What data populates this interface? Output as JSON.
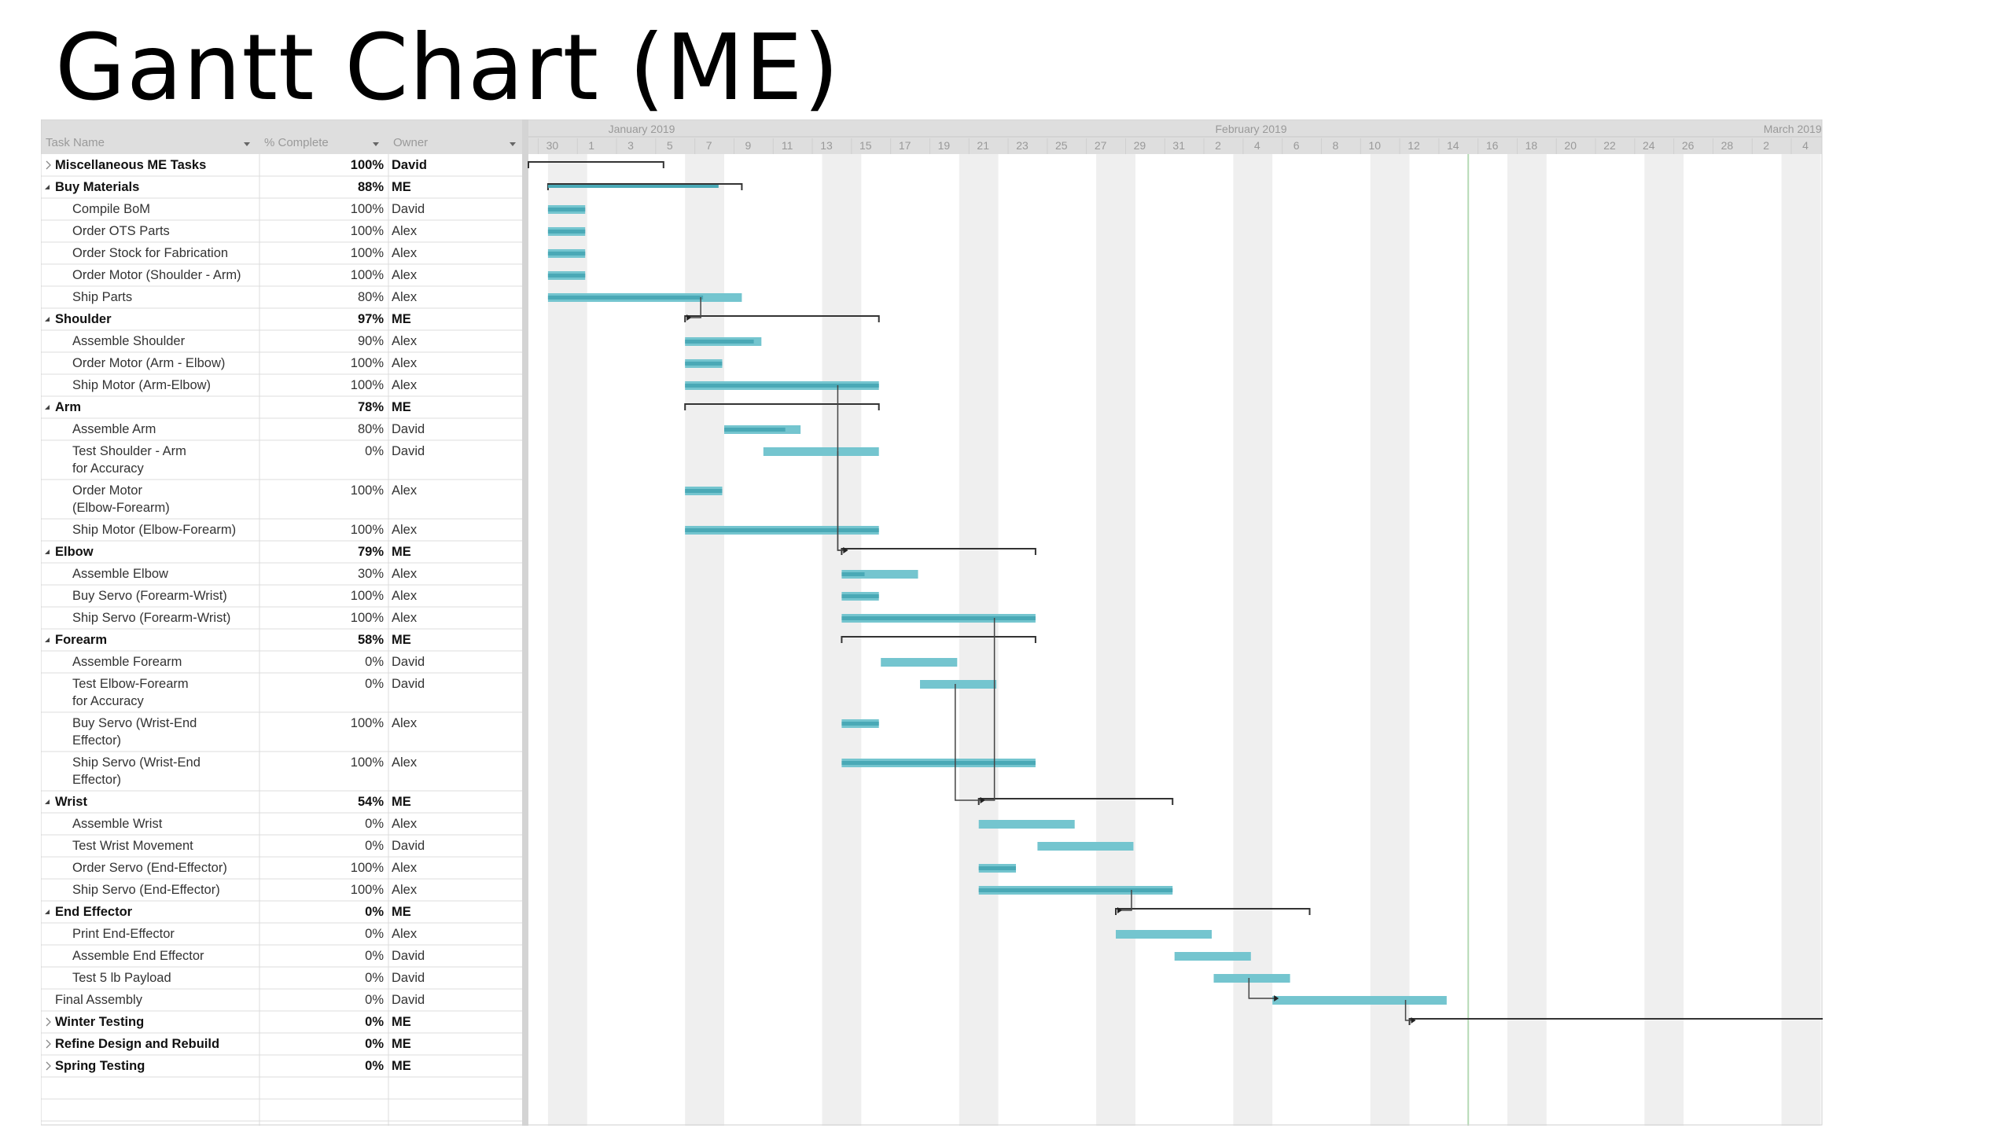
{
  "slide": {
    "title": "Gantt Chart (ME)"
  },
  "columns": {
    "task": "Task Name",
    "pct": "% Complete",
    "owner": "Owner"
  },
  "colors": {
    "bar": "#74c5cf",
    "bar_done": "#4aa9b6",
    "summary": "#333333",
    "weekend": "#efefef",
    "today": "#b6dab6",
    "grid": "#dcdcdc"
  },
  "chart_data": {
    "type": "gantt",
    "title": "Gantt Chart (ME)",
    "timeline": {
      "months": [
        {
          "label": "January 2019",
          "date": "2019-01-01"
        },
        {
          "label": "February 2019",
          "date": "2019-02-01"
        },
        {
          "label": "March 2019",
          "date": "2019-03-01"
        }
      ],
      "start": "2018-12-28",
      "end": "2019-03-05",
      "tick_labels": [
        "30",
        "1",
        "3",
        "5",
        "7",
        "9",
        "11",
        "13",
        "15",
        "17",
        "19",
        "21",
        "23",
        "25",
        "27",
        "29",
        "31",
        "2",
        "4",
        "6",
        "8",
        "10",
        "12",
        "14",
        "16",
        "18",
        "20",
        "22",
        "24",
        "26",
        "28",
        "2",
        "4"
      ],
      "today": "2019-02-14"
    },
    "tasks": [
      {
        "name": "Miscellaneous ME Tasks",
        "pct": "100%",
        "owner": "David",
        "summary": true,
        "collapsed": true,
        "start": "2018-12-28",
        "end": "2019-01-03"
      },
      {
        "name": "Buy Materials",
        "pct": "88%",
        "owner": "ME",
        "summary": true,
        "start": "2018-12-29",
        "end": "2019-01-07"
      },
      {
        "name": "Compile BoM",
        "pct": "100%",
        "owner": "David",
        "start": "2018-12-29",
        "end": "2018-12-30"
      },
      {
        "name": "Order OTS Parts",
        "pct": "100%",
        "owner": "Alex",
        "start": "2018-12-29",
        "end": "2018-12-30"
      },
      {
        "name": "Order Stock for Fabrication",
        "pct": "100%",
        "owner": "Alex",
        "start": "2018-12-29",
        "end": "2018-12-30"
      },
      {
        "name": "Order Motor (Shoulder - Arm)",
        "pct": "100%",
        "owner": "Alex",
        "start": "2018-12-29",
        "end": "2018-12-30"
      },
      {
        "name": "Ship Parts",
        "pct": "80%",
        "owner": "Alex",
        "start": "2018-12-29",
        "end": "2019-01-07"
      },
      {
        "name": "Shoulder",
        "pct": "97%",
        "owner": "ME",
        "summary": true,
        "start": "2019-01-05",
        "end": "2019-01-14"
      },
      {
        "name": "Assemble Shoulder",
        "pct": "90%",
        "owner": "Alex",
        "start": "2019-01-05",
        "end": "2019-01-08"
      },
      {
        "name": "Order Motor (Arm - Elbow)",
        "pct": "100%",
        "owner": "Alex",
        "start": "2019-01-05",
        "end": "2019-01-06"
      },
      {
        "name": "Ship Motor (Arm-Elbow)",
        "pct": "100%",
        "owner": "Alex",
        "start": "2019-01-05",
        "end": "2019-01-14"
      },
      {
        "name": "Arm",
        "pct": "78%",
        "owner": "ME",
        "summary": true,
        "start": "2019-01-05",
        "end": "2019-01-14"
      },
      {
        "name": "Assemble Arm",
        "pct": "80%",
        "owner": "David",
        "start": "2019-01-07",
        "end": "2019-01-10"
      },
      {
        "name": "Test Shoulder - Arm for Accuracy",
        "pct": "0%",
        "owner": "David",
        "start": "2019-01-09",
        "end": "2019-01-14"
      },
      {
        "name": "Order Motor (Elbow-Forearm)",
        "pct": "100%",
        "owner": "Alex",
        "start": "2019-01-05",
        "end": "2019-01-06"
      },
      {
        "name": "Ship Motor (Elbow-Forearm)",
        "pct": "100%",
        "owner": "Alex",
        "start": "2019-01-05",
        "end": "2019-01-14"
      },
      {
        "name": "Elbow",
        "pct": "79%",
        "owner": "ME",
        "summary": true,
        "start": "2019-01-13",
        "end": "2019-01-22"
      },
      {
        "name": "Assemble Elbow",
        "pct": "30%",
        "owner": "Alex",
        "start": "2019-01-13",
        "end": "2019-01-16"
      },
      {
        "name": "Buy Servo (Forearm-Wrist)",
        "pct": "100%",
        "owner": "Alex",
        "start": "2019-01-13",
        "end": "2019-01-14"
      },
      {
        "name": "Ship Servo (Forearm-Wrist)",
        "pct": "100%",
        "owner": "Alex",
        "start": "2019-01-13",
        "end": "2019-01-22"
      },
      {
        "name": "Forearm",
        "pct": "58%",
        "owner": "ME",
        "summary": true,
        "start": "2019-01-13",
        "end": "2019-01-22"
      },
      {
        "name": "Assemble Forearm",
        "pct": "0%",
        "owner": "David",
        "start": "2019-01-15",
        "end": "2019-01-18"
      },
      {
        "name": "Test Elbow-Forearm for Accuracy",
        "pct": "0%",
        "owner": "David",
        "start": "2019-01-17",
        "end": "2019-01-20"
      },
      {
        "name": "Buy Servo (Wrist-End Effector)",
        "pct": "100%",
        "owner": "Alex",
        "start": "2019-01-13",
        "end": "2019-01-14"
      },
      {
        "name": "Ship Servo (Wrist-End Effector)",
        "pct": "100%",
        "owner": "Alex",
        "start": "2019-01-13",
        "end": "2019-01-22"
      },
      {
        "name": "Wrist",
        "pct": "54%",
        "owner": "ME",
        "summary": true,
        "start": "2019-01-20",
        "end": "2019-01-29"
      },
      {
        "name": "Assemble Wrist",
        "pct": "0%",
        "owner": "Alex",
        "start": "2019-01-20",
        "end": "2019-01-24"
      },
      {
        "name": "Test Wrist Movement",
        "pct": "0%",
        "owner": "David",
        "start": "2019-01-23",
        "end": "2019-01-27"
      },
      {
        "name": "Order Servo (End-Effector)",
        "pct": "100%",
        "owner": "Alex",
        "start": "2019-01-20",
        "end": "2019-01-21"
      },
      {
        "name": "Ship Servo (End-Effector)",
        "pct": "100%",
        "owner": "Alex",
        "start": "2019-01-20",
        "end": "2019-01-29"
      },
      {
        "name": "End Effector",
        "pct": "0%",
        "owner": "ME",
        "summary": true,
        "start": "2019-01-27",
        "end": "2019-02-05"
      },
      {
        "name": "Print End-Effector",
        "pct": "0%",
        "owner": "Alex",
        "start": "2019-01-27",
        "end": "2019-01-31"
      },
      {
        "name": "Assemble End Effector",
        "pct": "0%",
        "owner": "David",
        "start": "2019-01-30",
        "end": "2019-02-02"
      },
      {
        "name": "Test 5 lb Payload",
        "pct": "0%",
        "owner": "David",
        "start": "2019-02-01",
        "end": "2019-02-04"
      },
      {
        "name": "Final Assembly",
        "pct": "0%",
        "owner": "David",
        "start": "2019-02-04",
        "end": "2019-02-12"
      },
      {
        "name": "Winter Testing",
        "pct": "0%",
        "owner": "ME",
        "summary": true,
        "collapsed": true,
        "start": "2019-02-11",
        "end": "2019-03-04"
      },
      {
        "name": "Refine Design and Rebuild",
        "pct": "0%",
        "owner": "ME",
        "summary": true,
        "collapsed": true
      },
      {
        "name": "Spring Testing",
        "pct": "0%",
        "owner": "ME",
        "summary": true,
        "collapsed": true
      }
    ]
  }
}
